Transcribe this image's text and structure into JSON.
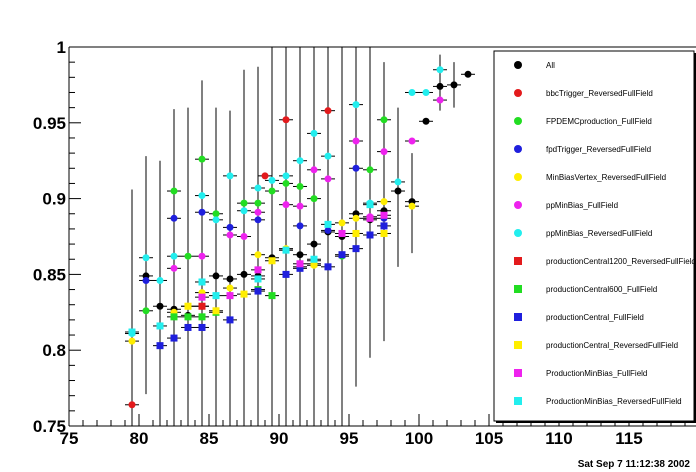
{
  "chart_data": {
    "type": "scatter",
    "xlim": [
      75,
      120
    ],
    "ylim": [
      0.75,
      1.0
    ],
    "x_ticks": [
      "75",
      "80",
      "85",
      "90",
      "95",
      "100",
      "105",
      "110",
      "115"
    ],
    "y_ticks": [
      "0.75",
      "0.8",
      "0.85",
      "0.9",
      "0.95",
      "1"
    ],
    "legend_placement": "right",
    "series": [
      {
        "name": "All",
        "marker": "circle",
        "color": "#000000",
        "points": [
          [
            80.5,
            0.849
          ],
          [
            81.5,
            0.829
          ],
          [
            82.5,
            0.827
          ],
          [
            83.5,
            0.823
          ],
          [
            84.5,
            0.829
          ],
          [
            85.5,
            0.849
          ],
          [
            86.5,
            0.847
          ],
          [
            87.5,
            0.85
          ],
          [
            88.5,
            0.849
          ],
          [
            89.5,
            0.861
          ],
          [
            90.5,
            0.866
          ],
          [
            91.5,
            0.863
          ],
          [
            92.5,
            0.87
          ],
          [
            93.5,
            0.878
          ],
          [
            94.5,
            0.875
          ],
          [
            95.5,
            0.89
          ],
          [
            96.5,
            0.886
          ],
          [
            97.5,
            0.892
          ],
          [
            98.5,
            0.905
          ],
          [
            99.5,
            0.898
          ],
          [
            100.5,
            0.951
          ],
          [
            101.5,
            0.974
          ],
          [
            102.5,
            0.975
          ],
          [
            103.5,
            0.982
          ]
        ]
      },
      {
        "name": "bbcTrigger_ReversedFullField",
        "marker": "circle",
        "color": "#e31a1c",
        "points": [
          [
            79.5,
            0.764
          ],
          [
            89.0,
            0.915
          ],
          [
            90.5,
            0.952
          ],
          [
            93.5,
            0.958
          ]
        ]
      },
      {
        "name": "FPDEMCproduction_FullField",
        "marker": "circle",
        "color": "#22dd22",
        "points": [
          [
            80.5,
            0.826
          ],
          [
            82.5,
            0.905
          ],
          [
            83.5,
            0.862
          ],
          [
            84.5,
            0.926
          ],
          [
            85.5,
            0.89
          ],
          [
            87.5,
            0.897
          ],
          [
            88.5,
            0.897
          ],
          [
            89.5,
            0.905
          ],
          [
            90.5,
            0.91
          ],
          [
            91.5,
            0.908
          ],
          [
            92.5,
            0.9
          ],
          [
            94.5,
            0.862
          ],
          [
            96.5,
            0.919
          ],
          [
            97.5,
            0.952
          ]
        ]
      },
      {
        "name": "fpdTrigger_ReversedFullField",
        "marker": "circle",
        "color": "#1f1fdd",
        "points": [
          [
            80.5,
            0.846
          ],
          [
            82.5,
            0.887
          ],
          [
            84.5,
            0.891
          ],
          [
            86.5,
            0.881
          ],
          [
            88.5,
            0.886
          ],
          [
            91.5,
            0.882
          ],
          [
            93.5,
            0.879
          ],
          [
            95.5,
            0.92
          ],
          [
            97.5,
            0.887
          ]
        ]
      },
      {
        "name": "MinBiasVertex_ReversedFullField",
        "marker": "circle",
        "color": "#ffee00",
        "points": [
          [
            79.5,
            0.806
          ],
          [
            82.5,
            0.825
          ],
          [
            83.5,
            0.829
          ],
          [
            84.5,
            0.838
          ],
          [
            86.5,
            0.841
          ],
          [
            88.5,
            0.863
          ],
          [
            90.5,
            0.867
          ],
          [
            92.5,
            0.856
          ],
          [
            94.5,
            0.884
          ],
          [
            95.5,
            0.887
          ],
          [
            97.5,
            0.898
          ],
          [
            99.5,
            0.895
          ]
        ]
      },
      {
        "name": "ppMinBias_FullField",
        "marker": "circle",
        "color": "#ee22ee",
        "points": [
          [
            82.5,
            0.854
          ],
          [
            84.5,
            0.862
          ],
          [
            86.5,
            0.876
          ],
          [
            87.5,
            0.875
          ],
          [
            88.5,
            0.891
          ],
          [
            90.5,
            0.896
          ],
          [
            91.5,
            0.895
          ],
          [
            92.5,
            0.919
          ],
          [
            93.5,
            0.913
          ],
          [
            95.5,
            0.938
          ],
          [
            96.5,
            0.888
          ],
          [
            97.5,
            0.931
          ],
          [
            99.5,
            0.938
          ],
          [
            101.5,
            0.965
          ]
        ]
      },
      {
        "name": "ppMinBias_ReversedFullField",
        "marker": "circle",
        "color": "#22eeee",
        "points": [
          [
            79.5,
            0.811
          ],
          [
            80.5,
            0.861
          ],
          [
            81.5,
            0.846
          ],
          [
            82.5,
            0.862
          ],
          [
            84.5,
            0.902
          ],
          [
            85.5,
            0.886
          ],
          [
            86.5,
            0.915
          ],
          [
            87.5,
            0.892
          ],
          [
            88.5,
            0.907
          ],
          [
            89.5,
            0.912
          ],
          [
            90.5,
            0.915
          ],
          [
            91.5,
            0.925
          ],
          [
            92.5,
            0.943
          ],
          [
            93.5,
            0.928
          ],
          [
            95.5,
            0.962
          ],
          [
            96.5,
            0.897
          ],
          [
            98.5,
            0.911
          ],
          [
            99.5,
            0.97
          ],
          [
            100.5,
            0.97
          ],
          [
            101.5,
            0.985
          ]
        ]
      },
      {
        "name": "productionCentral1200_ReversedFullField",
        "marker": "square",
        "color": "#e31a1c",
        "points": [
          [
            84.5,
            0.829
          ],
          [
            92.5,
            0.859
          ]
        ]
      },
      {
        "name": "productionCentral600_FullField",
        "marker": "square",
        "color": "#22dd22",
        "points": [
          [
            82.5,
            0.822
          ],
          [
            83.5,
            0.822
          ],
          [
            84.5,
            0.822
          ],
          [
            85.5,
            0.825
          ],
          [
            88.5,
            0.84
          ],
          [
            89.5,
            0.836
          ],
          [
            91.5,
            0.855
          ]
        ]
      },
      {
        "name": "productionCentral_FullField",
        "marker": "square",
        "color": "#1f1fdd",
        "points": [
          [
            81.5,
            0.803
          ],
          [
            82.5,
            0.808
          ],
          [
            83.5,
            0.815
          ],
          [
            84.5,
            0.815
          ],
          [
            86.5,
            0.82
          ],
          [
            88.5,
            0.839
          ],
          [
            90.5,
            0.85
          ],
          [
            91.5,
            0.854
          ],
          [
            93.5,
            0.855
          ],
          [
            94.5,
            0.863
          ],
          [
            95.5,
            0.867
          ],
          [
            96.5,
            0.876
          ],
          [
            97.5,
            0.882
          ]
        ]
      },
      {
        "name": "productionCentral_ReversedFullField",
        "marker": "square",
        "color": "#ffee00",
        "points": [
          [
            83.5,
            0.829
          ],
          [
            85.5,
            0.826
          ],
          [
            87.5,
            0.837
          ],
          [
            89.5,
            0.859
          ],
          [
            92.5,
            0.857
          ],
          [
            95.5,
            0.877
          ],
          [
            97.5,
            0.877
          ]
        ]
      },
      {
        "name": "ProductionMinBias_FullField",
        "marker": "square",
        "color": "#ee22ee",
        "points": [
          [
            84.5,
            0.835
          ],
          [
            86.5,
            0.836
          ],
          [
            88.5,
            0.853
          ],
          [
            91.5,
            0.857
          ],
          [
            94.5,
            0.877
          ],
          [
            96.5,
            0.887
          ],
          [
            97.5,
            0.889
          ]
        ]
      },
      {
        "name": "ProductionMinBias_ReversedFullField",
        "marker": "square",
        "color": "#22eeee",
        "points": [
          [
            79.5,
            0.812
          ],
          [
            81.5,
            0.816
          ],
          [
            84.5,
            0.845
          ],
          [
            85.5,
            0.836
          ],
          [
            88.5,
            0.847
          ],
          [
            90.5,
            0.866
          ],
          [
            92.5,
            0.86
          ],
          [
            93.5,
            0.883
          ],
          [
            96.5,
            0.896
          ]
        ]
      }
    ],
    "error_bars": [
      {
        "x": 79.5,
        "low": 0.75,
        "high": 0.906
      },
      {
        "x": 80.5,
        "low": 0.771,
        "high": 0.928
      },
      {
        "x": 81.5,
        "low": 0.75,
        "high": 0.925
      },
      {
        "x": 82.5,
        "low": 0.75,
        "high": 0.959
      },
      {
        "x": 83.5,
        "low": 0.75,
        "high": 0.96
      },
      {
        "x": 84.5,
        "low": 0.75,
        "high": 0.978
      },
      {
        "x": 85.5,
        "low": 0.75,
        "high": 0.96
      },
      {
        "x": 86.5,
        "low": 0.75,
        "high": 0.958
      },
      {
        "x": 87.5,
        "low": 0.75,
        "high": 0.985
      },
      {
        "x": 88.5,
        "low": 0.75,
        "high": 0.987
      },
      {
        "x": 89.5,
        "low": 0.75,
        "high": 1.0
      },
      {
        "x": 90.5,
        "low": 0.75,
        "high": 1.0
      },
      {
        "x": 91.5,
        "low": 0.75,
        "high": 1.0
      },
      {
        "x": 92.5,
        "low": 0.75,
        "high": 1.0
      },
      {
        "x": 93.5,
        "low": 0.75,
        "high": 1.0
      },
      {
        "x": 94.5,
        "low": 0.75,
        "high": 1.0
      },
      {
        "x": 95.5,
        "low": 0.776,
        "high": 1.0
      },
      {
        "x": 96.5,
        "low": 0.795,
        "high": 1.0
      },
      {
        "x": 97.5,
        "low": 0.806,
        "high": 0.99
      },
      {
        "x": 98.5,
        "low": 0.855,
        "high": 0.96
      },
      {
        "x": 99.5,
        "low": 0.864,
        "high": 0.93
      },
      {
        "x": 101.5,
        "low": 0.958,
        "high": 0.995
      },
      {
        "x": 102.5,
        "low": 0.96,
        "high": 0.99
      }
    ]
  },
  "footer": {
    "timestamp": "Sat Sep  7 11:12:38 2002"
  }
}
